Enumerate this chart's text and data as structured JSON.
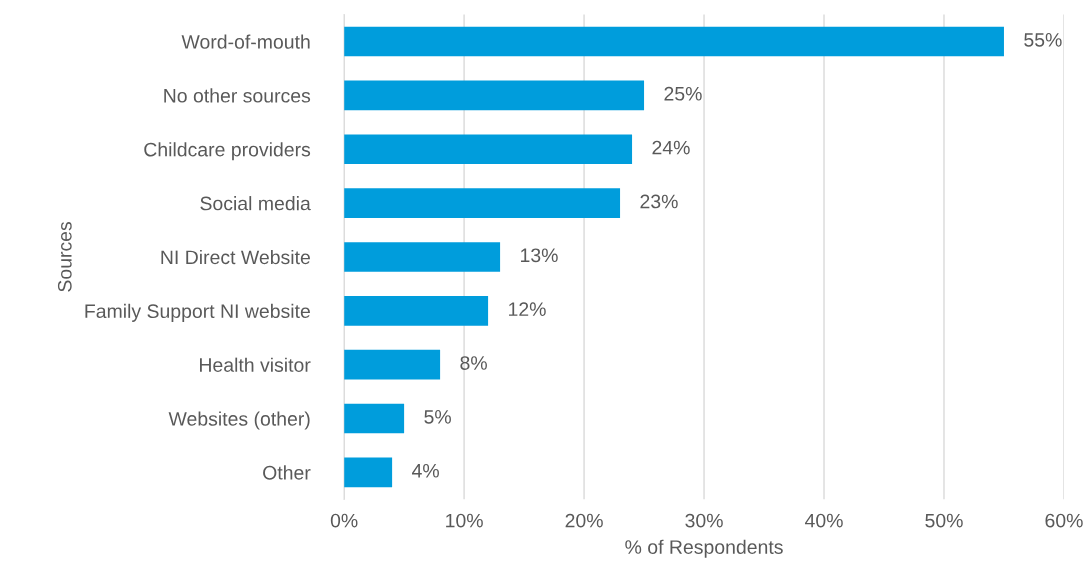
{
  "chart_data": {
    "type": "bar",
    "orientation": "horizontal",
    "xlabel": "% of Respondents",
    "ylabel": "Sources",
    "categories": [
      "Word-of-mouth",
      "No other sources",
      "Childcare providers",
      "Social media",
      "NI Direct Website",
      "Family Support NI website",
      "Health visitor",
      "Websites (other)",
      "Other"
    ],
    "values": [
      55,
      25,
      24,
      23,
      13,
      12,
      8,
      5,
      4
    ],
    "value_labels": [
      "55%",
      "25%",
      "24%",
      "23%",
      "13%",
      "12%",
      "8%",
      "5%",
      "4%"
    ],
    "color": "#009ddc",
    "xlim": [
      0,
      60
    ],
    "xticks": [
      {
        "value": 0,
        "label": "0%"
      },
      {
        "value": 10,
        "label": "10%"
      },
      {
        "value": 20,
        "label": "20%"
      },
      {
        "value": 30,
        "label": "30%"
      },
      {
        "value": 40,
        "label": "40%"
      },
      {
        "value": 50,
        "label": "50%"
      },
      {
        "value": 60,
        "label": "60%"
      }
    ],
    "grid": "x",
    "legend": false
  }
}
